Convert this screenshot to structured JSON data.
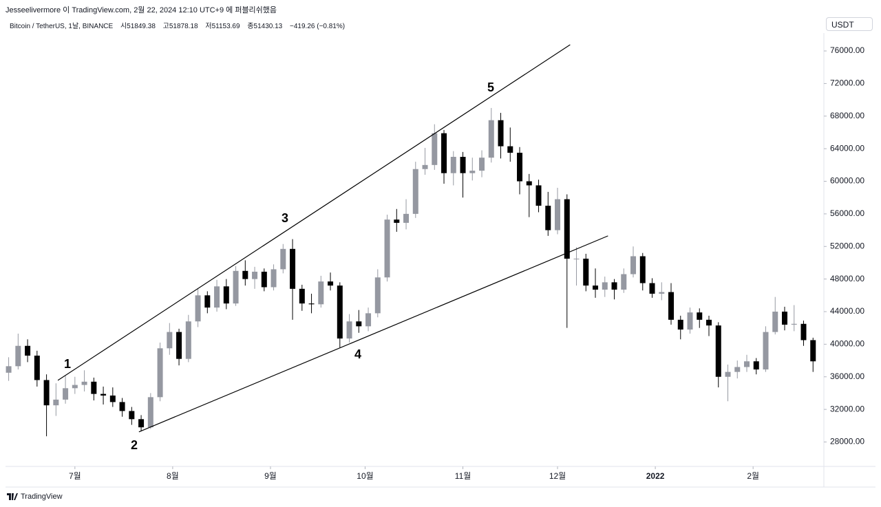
{
  "header": {
    "published": "Jesseelivermore 이 TradingView.com, 2월 22, 2024 12:10 UTC+9 에 퍼블리쉬했음",
    "symbol": "Bitcoin / TetherUS, 1날, BINANCE",
    "ohlc": [
      "시51849.38",
      "고51878.18",
      "저51153.69",
      "종51430.13",
      "−419.26 (−0.81%)"
    ],
    "currency": "USDT"
  },
  "footer": {
    "brand": "TradingView"
  },
  "chart_data": {
    "type": "candlestick",
    "x": [
      0,
      3,
      6,
      9,
      12,
      15,
      18,
      21,
      24,
      27,
      30,
      33,
      36,
      39,
      42,
      45,
      48,
      51,
      54,
      57,
      60,
      63,
      66,
      69,
      72,
      75,
      78,
      81,
      84,
      87,
      90,
      93,
      96,
      99,
      102,
      105,
      108,
      111,
      114,
      117,
      120,
      123,
      126,
      129,
      132,
      135,
      138,
      141,
      144,
      147,
      150,
      153,
      156,
      159,
      162,
      165,
      168,
      171,
      174,
      177,
      180,
      183,
      186,
      189,
      192,
      195,
      198,
      201,
      204,
      207,
      210,
      213,
      216,
      219,
      222,
      225,
      228,
      231,
      234,
      237,
      240,
      243,
      246,
      249,
      252,
      255
    ],
    "open": [
      36500,
      37300,
      39800,
      38600,
      35600,
      32500,
      33200,
      34600,
      35000,
      35400,
      33900,
      33700,
      32900,
      31800,
      30800,
      29800,
      33500,
      39500,
      41500,
      38200,
      42800,
      46000,
      44500,
      47100,
      45000,
      49000,
      48000,
      48900,
      47000,
      49200,
      51700,
      46800,
      45000,
      44900,
      47700,
      47200,
      40700,
      42800,
      42200,
      43800,
      48200,
      55300,
      54900,
      56000,
      61500,
      62000,
      65900,
      61000,
      63000,
      61000,
      61300,
      62900,
      67500,
      64300,
      63500,
      60000,
      59500,
      57000,
      54000,
      57800,
      50500,
      50500,
      47200,
      46700,
      47600,
      46700,
      48600,
      50800,
      47500,
      46200,
      46400,
      43000,
      41800,
      43900,
      43000,
      42300,
      36000,
      36600,
      37200,
      37900,
      36900,
      41500,
      44000,
      42400,
      42500,
      40500
    ],
    "high": [
      38400,
      41300,
      40600,
      39200,
      36300,
      35200,
      36100,
      36000,
      36800,
      35900,
      34800,
      34700,
      33400,
      32300,
      31300,
      34000,
      40200,
      42600,
      41900,
      43600,
      46800,
      46500,
      47900,
      48000,
      49600,
      50300,
      49500,
      49300,
      49800,
      52300,
      52900,
      47300,
      46200,
      48400,
      48800,
      47600,
      43700,
      44200,
      44500,
      49200,
      55900,
      56600,
      57800,
      62400,
      64100,
      67000,
      66300,
      63700,
      63600,
      62900,
      63800,
      69000,
      68400,
      66600,
      64200,
      60900,
      60200,
      58700,
      59200,
      58400,
      51900,
      51100,
      49300,
      48300,
      48000,
      49300,
      52000,
      51200,
      48100,
      47600,
      47500,
      43500,
      44500,
      44400,
      43500,
      42700,
      37500,
      38000,
      38700,
      38300,
      42200,
      45800,
      44600,
      44800,
      42900,
      40800
    ],
    "low": [
      35500,
      36900,
      37800,
      34800,
      28700,
      31200,
      32700,
      33900,
      34200,
      33100,
      32600,
      32300,
      31100,
      30100,
      29300,
      29600,
      33000,
      38700,
      37400,
      37800,
      42100,
      43800,
      44000,
      44300,
      44700,
      47200,
      46800,
      46500,
      46600,
      48700,
      43000,
      44100,
      43800,
      44500,
      46600,
      39600,
      40200,
      41400,
      41600,
      43300,
      47700,
      53800,
      54100,
      55500,
      60800,
      61400,
      59700,
      59500,
      58000,
      60100,
      60500,
      62300,
      62800,
      62400,
      58400,
      55600,
      56200,
      53300,
      53500,
      42000,
      47200,
      46500,
      45700,
      45800,
      45500,
      46300,
      48200,
      46600,
      45700,
      45400,
      42400,
      40600,
      41300,
      42000,
      41000,
      34700,
      33000,
      35800,
      36600,
      36300,
      36600,
      41200,
      41700,
      41600,
      39800,
      36600
    ],
    "close": [
      37300,
      39800,
      38600,
      35600,
      32500,
      33200,
      34600,
      35000,
      35400,
      33900,
      33700,
      32900,
      31800,
      30800,
      29800,
      33500,
      39500,
      41500,
      38200,
      42800,
      46000,
      44500,
      47100,
      45000,
      49000,
      48000,
      48900,
      47000,
      49200,
      51700,
      46800,
      45000,
      44900,
      47700,
      47200,
      40700,
      42800,
      42200,
      43800,
      48200,
      55300,
      54900,
      56000,
      61500,
      62000,
      65900,
      61000,
      63000,
      61000,
      61300,
      62900,
      67500,
      64300,
      63500,
      60000,
      59500,
      57000,
      54000,
      57800,
      50500,
      50500,
      47200,
      46700,
      47600,
      46700,
      48600,
      50800,
      47500,
      46200,
      46400,
      43000,
      41800,
      43900,
      43000,
      42300,
      36000,
      36600,
      37200,
      37900,
      36900,
      41500,
      44000,
      42400,
      42500,
      40500,
      37900
    ],
    "up_color": "#9598a1",
    "down_color": "#000000",
    "xlim": [
      -1,
      258
    ],
    "xticks": [
      {
        "value": 21,
        "label": "7월"
      },
      {
        "value": 52,
        "label": "8월"
      },
      {
        "value": 83,
        "label": "9월"
      },
      {
        "value": 113,
        "label": "10월"
      },
      {
        "value": 144,
        "label": "11월"
      },
      {
        "value": 174,
        "label": "12월"
      },
      {
        "value": 205,
        "label": "2022"
      },
      {
        "value": 236,
        "label": "2월"
      }
    ],
    "ylim": [
      25000,
      78200
    ],
    "yticks": [
      {
        "value": 28000,
        "label": "28000.00"
      },
      {
        "value": 32000,
        "label": "32000.00"
      },
      {
        "value": 36000,
        "label": "36000.00"
      },
      {
        "value": 40000,
        "label": "40000.00"
      },
      {
        "value": 44000,
        "label": "44000.00"
      },
      {
        "value": 48000,
        "label": "48000.00"
      },
      {
        "value": 52000,
        "label": "52000.00"
      },
      {
        "value": 56000,
        "label": "56000.00"
      },
      {
        "value": 60000,
        "label": "60000.00"
      },
      {
        "value": 64000,
        "label": "64000.00"
      },
      {
        "value": 68000,
        "label": "68000.00"
      },
      {
        "value": 72000,
        "label": "72000.00"
      },
      {
        "value": 76000,
        "label": "76000.00"
      }
    ],
    "trendlines": [
      {
        "x": [
          15.6,
          178
        ],
        "y": [
          35570,
          76760
        ]
      },
      {
        "x": [
          41.3,
          190
        ],
        "y": [
          29240,
          53300
        ]
      }
    ],
    "wave_labels": [
      "1",
      "2",
      "3",
      "4",
      "5"
    ]
  }
}
